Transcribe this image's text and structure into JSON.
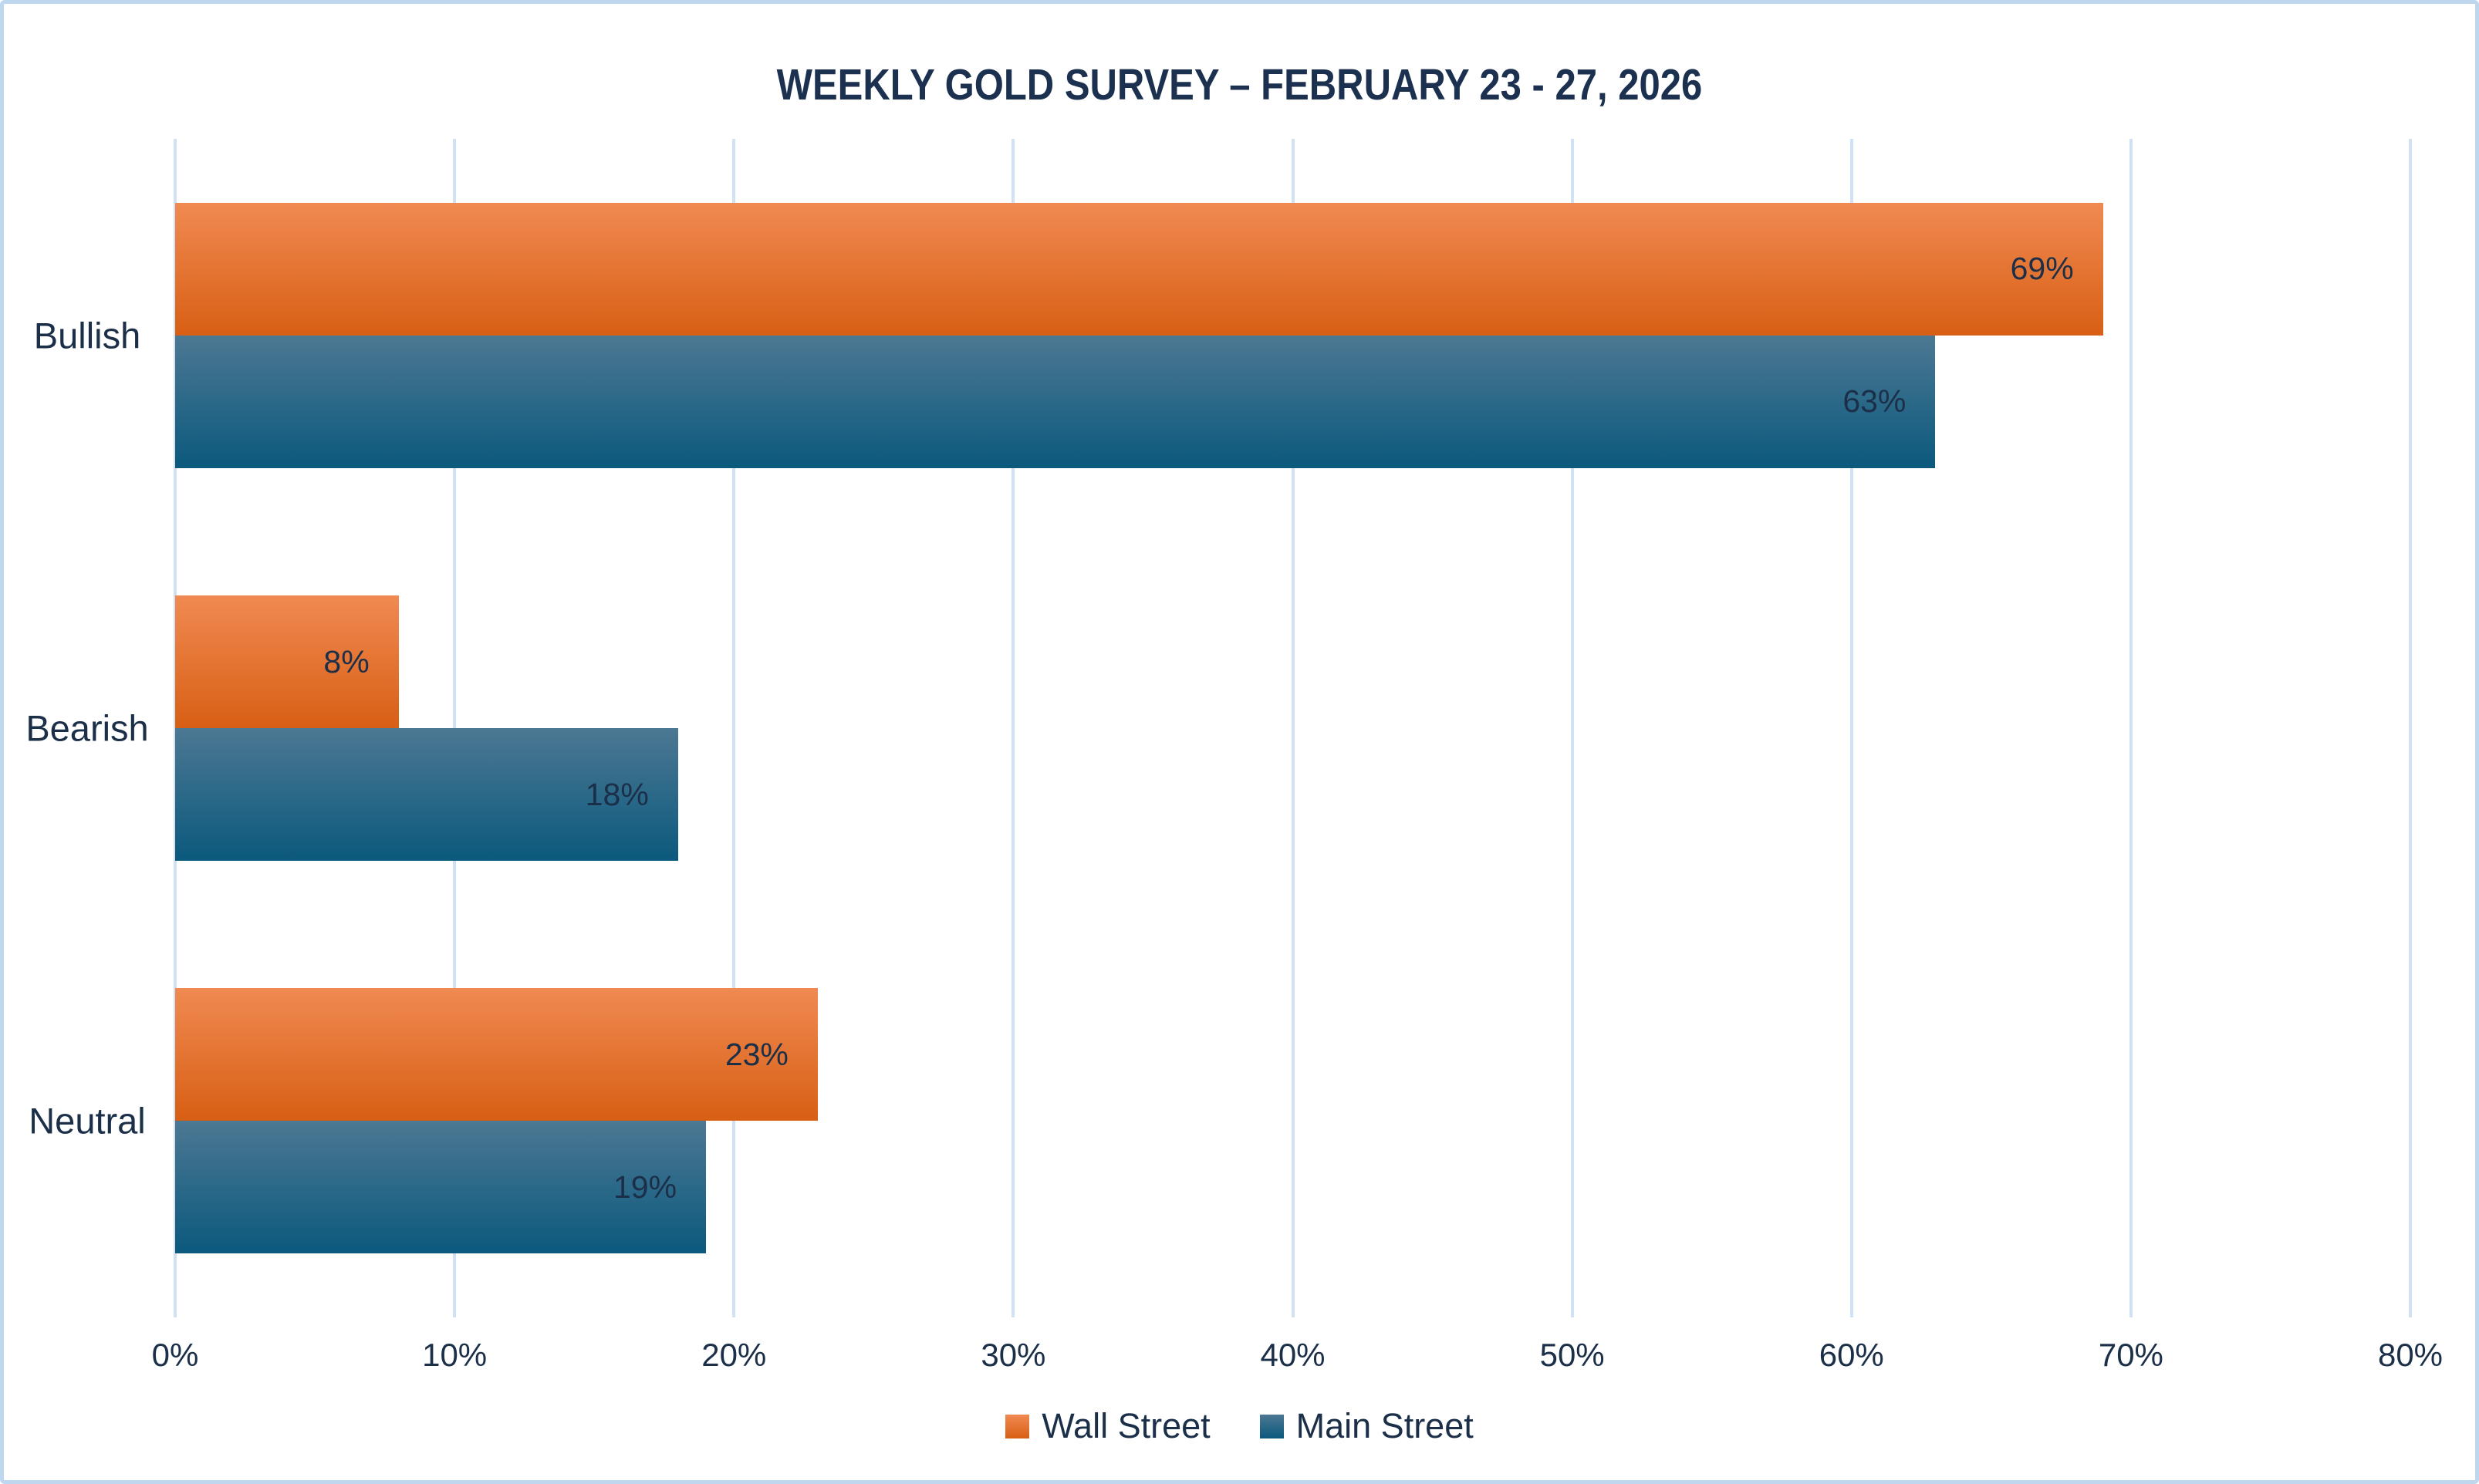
{
  "frame": {
    "background": "#ffffff",
    "border_color": "#bfd7ee"
  },
  "chart_data": {
    "type": "bar",
    "orientation": "horizontal",
    "title": "WEEKLY GOLD SURVEY – FEBRUARY 23 - 27, 2026",
    "categories": [
      "Bullish",
      "Bearish",
      "Neutral"
    ],
    "series": [
      {
        "name": "Wall Street",
        "values": [
          69,
          8,
          23
        ],
        "value_labels": [
          "69%",
          "8%",
          "23%"
        ],
        "color_top": "#f08a52",
        "color_bottom": "#d85f14"
      },
      {
        "name": "Main Street",
        "values": [
          63,
          18,
          19
        ],
        "value_labels": [
          "63%",
          "18%",
          "19%"
        ],
        "color_top": "#4c7893",
        "color_bottom": "#0b597d"
      }
    ],
    "x_axis": {
      "min": 0,
      "max": 80,
      "tick_values": [
        0,
        10,
        20,
        30,
        40,
        50,
        60,
        70,
        80
      ],
      "tick_labels": [
        "0%",
        "10%",
        "20%",
        "30%",
        "40%",
        "50%",
        "60%",
        "70%",
        "80%"
      ],
      "grid": true
    },
    "legend": {
      "position": "bottom",
      "entries": [
        "Wall Street",
        "Main Street"
      ]
    },
    "colors": {
      "text": "#1b2f49",
      "title_text": "#1c3150",
      "gridline": "#cfe1f2"
    }
  }
}
